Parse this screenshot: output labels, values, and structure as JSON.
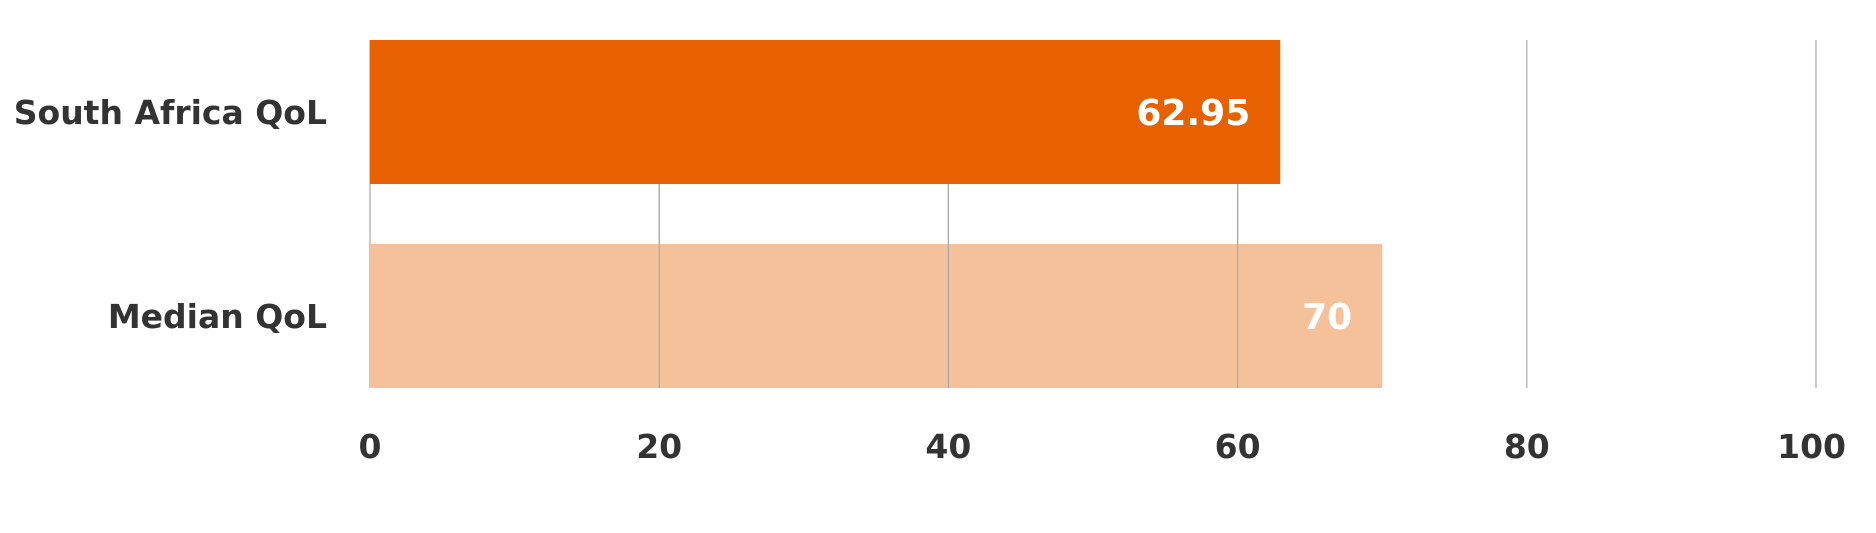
{
  "chart_data": {
    "type": "bar",
    "orientation": "horizontal",
    "categories": [
      "South Africa QoL",
      "Median QoL"
    ],
    "values": [
      62.95,
      70
    ],
    "value_labels": [
      "62.95",
      "70"
    ],
    "colors": [
      "#e86100",
      "#f5c19b"
    ],
    "xlim": [
      0,
      100
    ],
    "x_ticks": [
      0,
      20,
      40,
      60,
      80,
      100
    ],
    "x_tick_labels": [
      "0",
      "20",
      "40",
      "60",
      "80",
      "100"
    ],
    "grid": true,
    "title": "",
    "xlabel": "",
    "ylabel": "",
    "legend": "none"
  }
}
